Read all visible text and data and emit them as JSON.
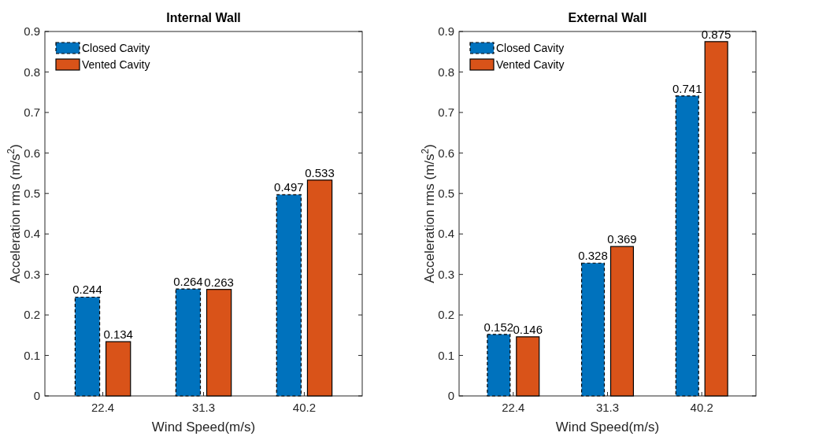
{
  "chart_data": [
    {
      "type": "bar",
      "title": "Internal Wall",
      "xlabel": "Wind Speed(m/s)",
      "ylabel": "Acceleration rms (m/s$^{2}$)",
      "categories": [
        "22.4",
        "31.3",
        "40.2"
      ],
      "series": [
        {
          "name": "Closed Cavity",
          "color": "#0072bd",
          "line_style": "dashed",
          "values": [
            0.244,
            0.264,
            0.497
          ]
        },
        {
          "name": "Vented Cavity",
          "color": "#d95319",
          "line_style": "solid",
          "values": [
            0.134,
            0.263,
            0.533
          ]
        }
      ],
      "ylim": [
        0,
        0.9
      ],
      "yticks": [
        0,
        0.1,
        0.2,
        0.3,
        0.4,
        0.5,
        0.6,
        0.7,
        0.8,
        0.9
      ],
      "data_labels": true,
      "legend": "top left",
      "grid": false
    },
    {
      "type": "bar",
      "title": "External Wall",
      "xlabel": "Wind Speed(m/s)",
      "ylabel": "Acceleration rms (m/s$^{2}$)",
      "categories": [
        "22.4",
        "31.3",
        "40.2"
      ],
      "series": [
        {
          "name": "Closed Cavity",
          "color": "#0072bd",
          "line_style": "dashed",
          "values": [
            0.152,
            0.328,
            0.741
          ]
        },
        {
          "name": "Vented Cavity",
          "color": "#d95319",
          "line_style": "solid",
          "values": [
            0.146,
            0.369,
            0.875
          ]
        }
      ],
      "ylim": [
        0,
        0.9
      ],
      "yticks": [
        0,
        0.1,
        0.2,
        0.3,
        0.4,
        0.5,
        0.6,
        0.7,
        0.8,
        0.9
      ],
      "data_labels": true,
      "legend": "top left",
      "grid": false
    }
  ]
}
